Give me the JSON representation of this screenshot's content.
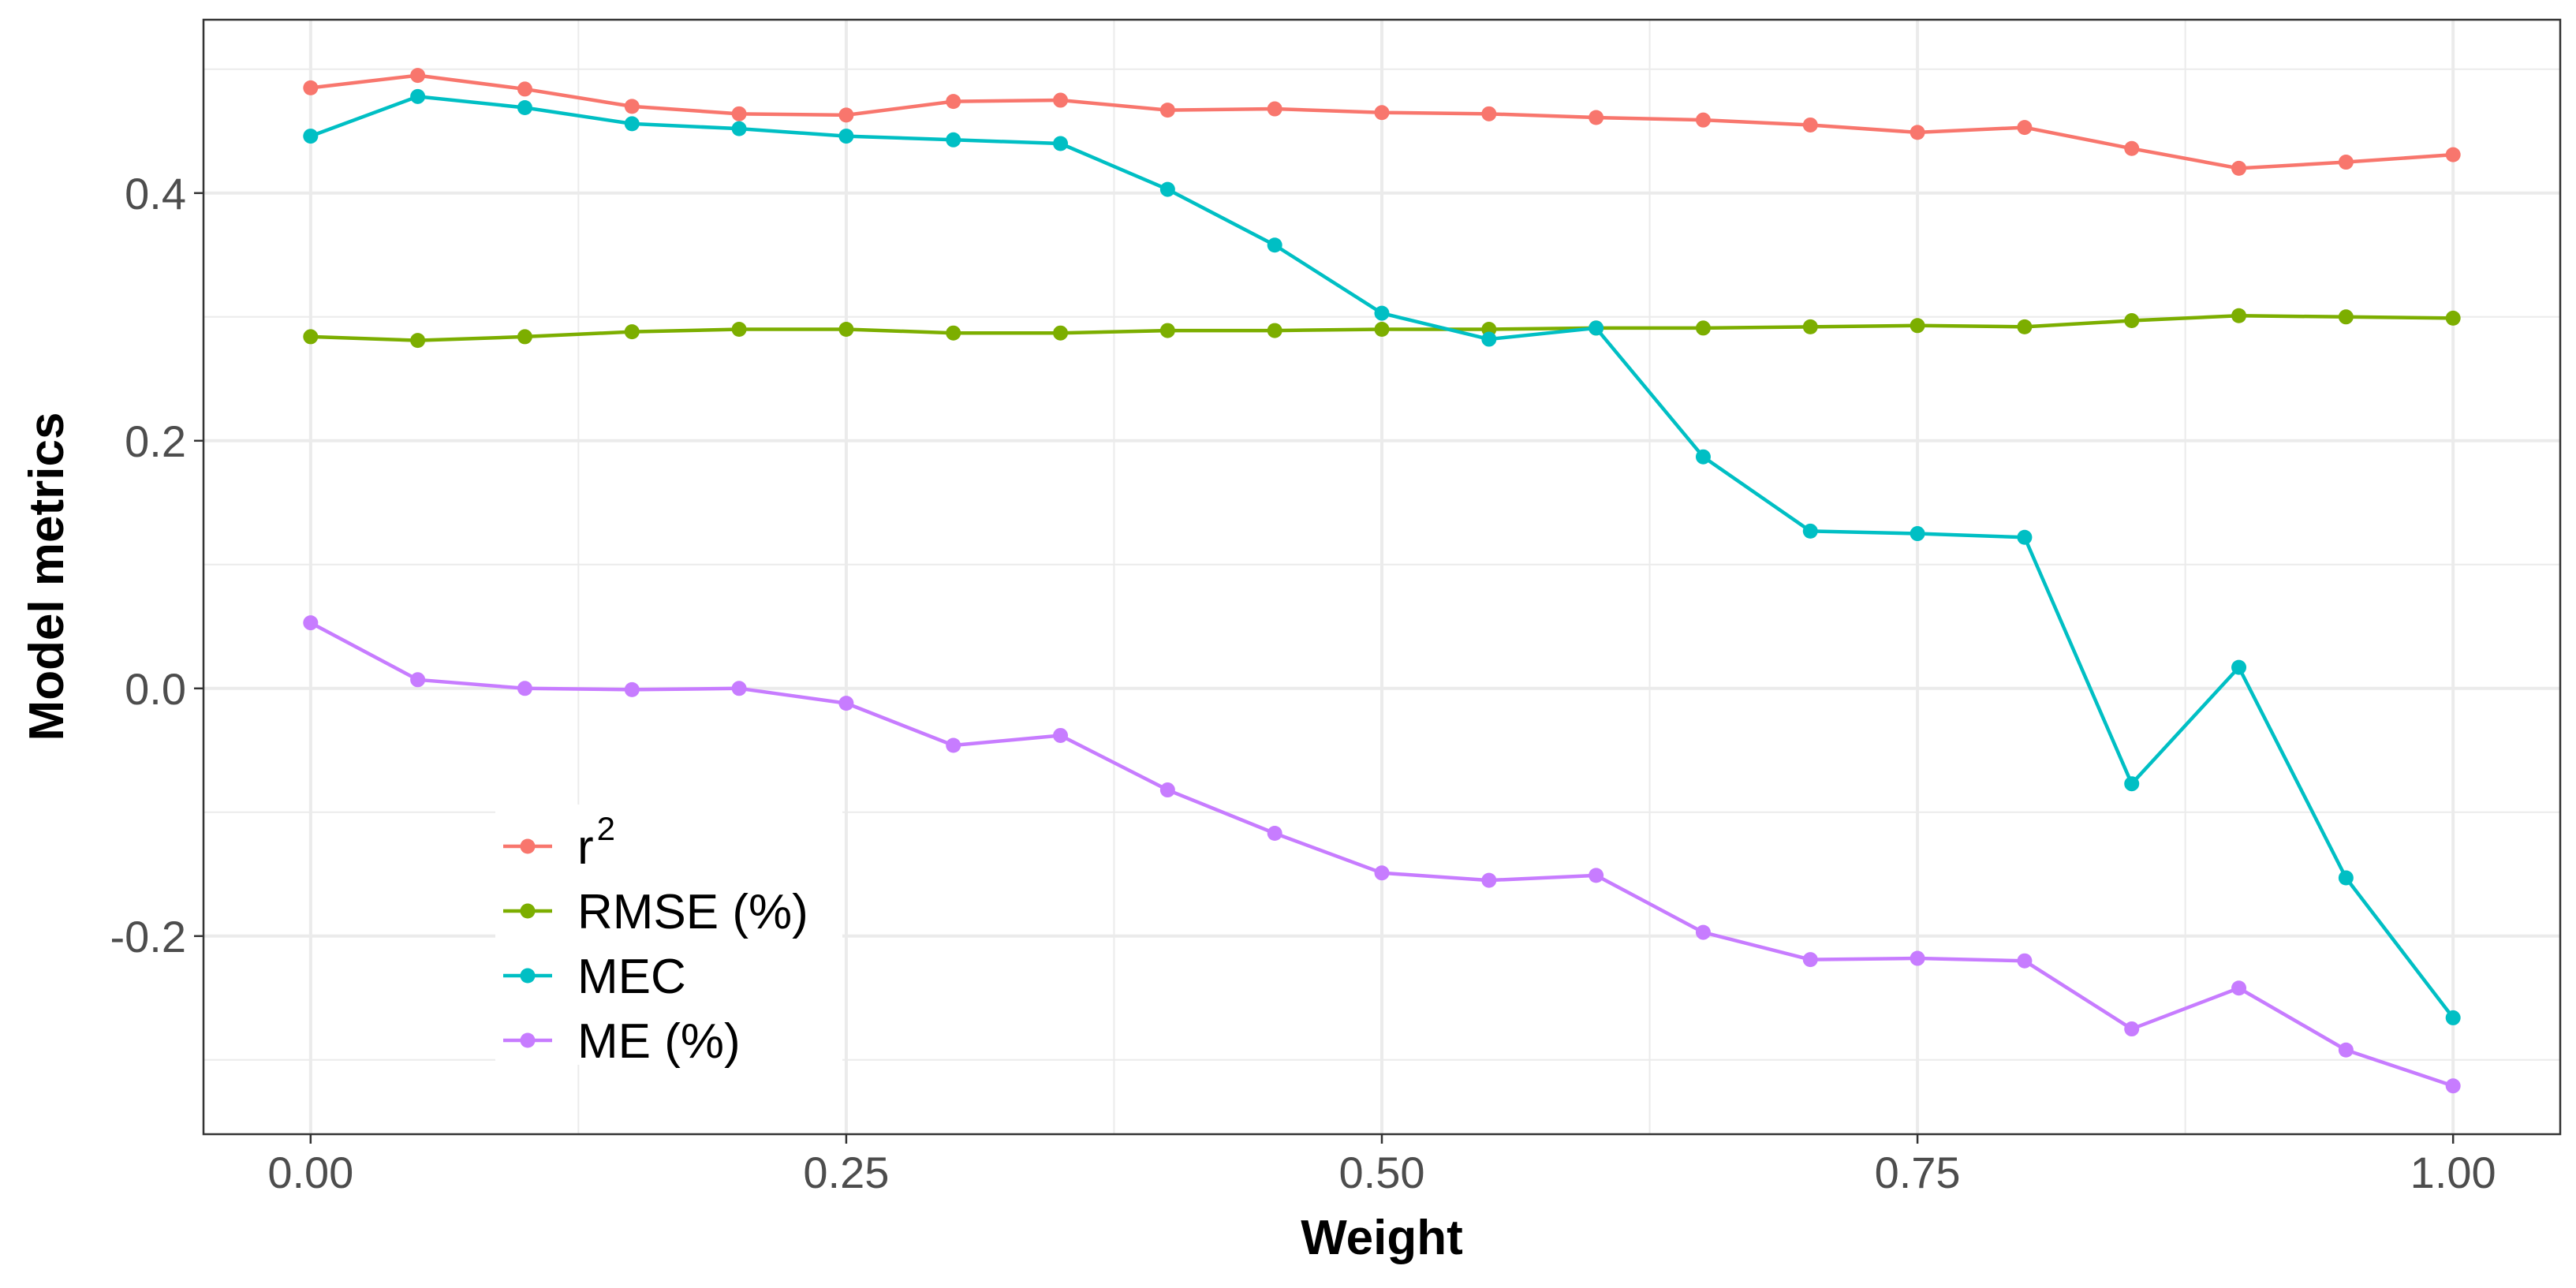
{
  "chart_data": {
    "type": "line",
    "title": "",
    "xlabel": "Weight",
    "ylabel": "Model metrics",
    "xlim": [
      -0.05,
      1.05
    ],
    "ylim": [
      -0.36,
      0.54
    ],
    "x_ticks": [
      0.0,
      0.25,
      0.5,
      0.75,
      1.0
    ],
    "x_tick_labels": [
      "0.00",
      "0.25",
      "0.50",
      "0.75",
      "1.00"
    ],
    "y_ticks": [
      -0.2,
      0.0,
      0.2,
      0.4
    ],
    "y_tick_labels": [
      "-0.2",
      "0.0",
      "0.2",
      "0.4"
    ],
    "grid": true,
    "legend_position": "bottom-left",
    "x": [
      0.0,
      0.05,
      0.1,
      0.15,
      0.2,
      0.25,
      0.3,
      0.35,
      0.4,
      0.45,
      0.5,
      0.55,
      0.6,
      0.65,
      0.7,
      0.75,
      0.8,
      0.85,
      0.9,
      0.95,
      1.0
    ],
    "series": [
      {
        "key": "r2",
        "name": "r",
        "superscript": "2",
        "color": "#F8766D",
        "values": [
          0.485,
          0.495,
          0.484,
          0.47,
          0.464,
          0.463,
          0.474,
          0.475,
          0.467,
          0.468,
          0.465,
          0.464,
          0.461,
          0.459,
          0.455,
          0.449,
          0.453,
          0.436,
          0.42,
          0.425,
          0.431
        ]
      },
      {
        "key": "rmse",
        "name": "RMSE (%)",
        "color": "#7CAE00",
        "values": [
          0.284,
          0.281,
          0.284,
          0.288,
          0.29,
          0.29,
          0.287,
          0.287,
          0.289,
          0.289,
          0.29,
          0.29,
          0.291,
          0.291,
          0.292,
          0.293,
          0.292,
          0.297,
          0.301,
          0.3,
          0.299
        ]
      },
      {
        "key": "mec",
        "name": "MEC",
        "color": "#00BFC4",
        "values": [
          0.446,
          0.478,
          0.469,
          0.456,
          0.452,
          0.446,
          0.443,
          0.44,
          0.403,
          0.358,
          0.303,
          0.282,
          0.291,
          0.187,
          0.127,
          0.125,
          0.122,
          -0.077,
          0.017,
          -0.153,
          -0.266
        ]
      },
      {
        "key": "me",
        "name": "ME (%)",
        "color": "#C77CFF",
        "values": [
          0.053,
          0.007,
          0.0,
          -0.001,
          0.0,
          -0.012,
          -0.046,
          -0.038,
          -0.082,
          -0.117,
          -0.149,
          -0.155,
          -0.151,
          -0.197,
          -0.219,
          -0.218,
          -0.22,
          -0.275,
          -0.242,
          -0.292,
          -0.321
        ]
      }
    ]
  }
}
